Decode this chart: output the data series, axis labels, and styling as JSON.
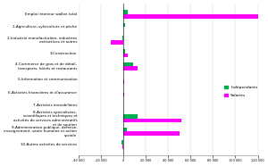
{
  "categories": [
    "Emploi intérieur wallon total",
    "1-Agriculture, sylviculture et pêche",
    "2-Industrie manufacturière, industries extractives et autres",
    "3-Construction",
    "4-Commerce de gros et de détail, transports, hôtels et restaurants",
    "5-Information et communication",
    "6-Activités financières et d'assurance",
    "7-Activités immobilières",
    "8-Activités spécialisées, scientifiques et techniques et activités de services administratifs et de soutien",
    "9-Administration publique, défense, enseignement, santé humaine et action sociale",
    "10-Autres activités de services"
  ],
  "independants": [
    4000,
    1500,
    -500,
    1500,
    9000,
    400,
    200,
    400,
    13000,
    3500,
    -1500
  ],
  "salaries": [
    120000,
    0,
    -11000,
    4500,
    13000,
    1200,
    800,
    300,
    52000,
    50000,
    -500
  ],
  "color_independants": "#00b050",
  "color_salaries": "#ff00ff",
  "xlim": [
    -40000,
    120000
  ],
  "xticks": [
    -40000,
    -20000,
    0,
    20000,
    40000,
    60000,
    80000,
    100000,
    120000
  ],
  "bar_height": 0.32,
  "legend_labels": [
    "Indépendants",
    "Salariés"
  ],
  "background_color": "#ffffff"
}
